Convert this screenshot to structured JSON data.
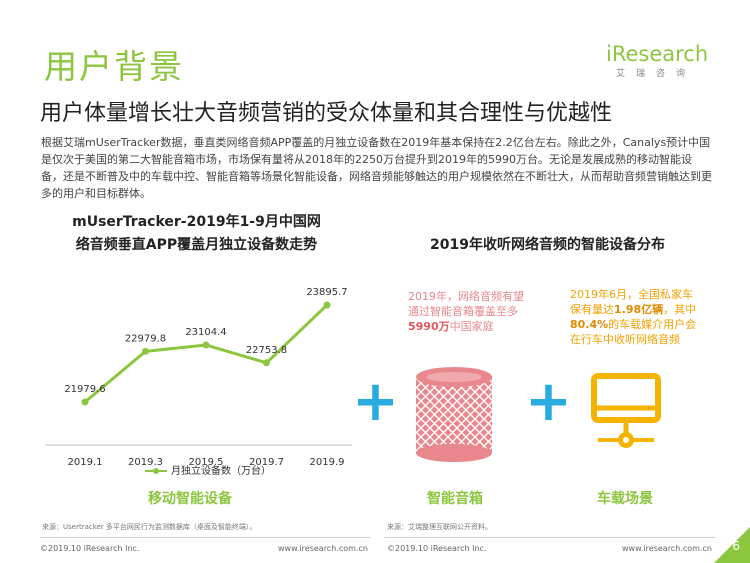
{
  "header": {
    "section_title": "用户背景",
    "logo_text": "iResearch",
    "logo_sub": "艾瑞咨询",
    "subtitle": "用户体量增长壮大音频营销的受众体量和其合理性与优越性"
  },
  "intro": {
    "paragraph": "根据艾瑞mUserTracker数据，垂直类网络音频APP覆盖的月独立设备数在2019年基本保持在2.2亿台左右。除此之外，Canalys预计中国是仅次于美国的第二大智能音箱市场，市场保有量将从2018年的2250万台提升到2019年的5990万台。无论是发展成熟的移动智能设备，还是不断普及中的车载中控、智能音箱等场景化智能设备，网络音频能够触达的用户规模依然在不断壮大，从而帮助音频营销触达到更多的用户和目标群体。"
  },
  "left": {
    "title_line1": "mUserTracker-2019年1-9月中国网",
    "title_line2": "络音频垂直APP覆盖月独立设备数走势",
    "category_label": "移动智能设备"
  },
  "chart_data": {
    "type": "line",
    "title": "mUserTracker-2019年1-9月中国网络音频垂直APP覆盖月独立设备数走势",
    "categories": [
      "2019.1",
      "2019.3",
      "2019.5",
      "2019.7",
      "2019.9"
    ],
    "series": [
      {
        "name": "月独立设备数（万台）",
        "values": [
          21979.6,
          22979.8,
          23104.4,
          22753.8,
          23895.7
        ],
        "color": "#8cc63f"
      }
    ],
    "value_labels": [
      "21979.6",
      "22979.8",
      "23104.4",
      "22753.8",
      "23895.7"
    ],
    "ylim": [
      21000,
      24500
    ],
    "grid": false,
    "legend": "bottom"
  },
  "right": {
    "title": "2019年收听网络音频的智能设备分布",
    "speaker_text_pre": "2019年，网络音频有望通过智能音箱覆盖至多",
    "speaker_text_bold": "5990万",
    "speaker_text_post": "中国家庭",
    "speaker_label": "智能音箱",
    "car_text_1": "2019年6月，全国私家车保有量达",
    "car_text_bold1": "1.98亿辆",
    "car_text_2": "，其中",
    "car_text_bold2": "80.4%",
    "car_text_3": "的车载媒介用户会在行车中收听网络音频",
    "car_label": "车载场景",
    "plus_sign": "+"
  },
  "footer": {
    "source_left": "来源：Usertracker 多平台网民行为监测数据库（桌面及智能终端）。",
    "source_right": "来源：艾瑞整理互联网公开资料。",
    "copyright_left": "©2019.10 iResearch Inc.",
    "site_left": "www.iresearch.com.cn",
    "copyright_right": "©2019.10 iResearch Inc.",
    "site_right": "www.iresearch.com.cn",
    "page_number": "6"
  },
  "colors": {
    "accent_green": "#8cc63f",
    "plus_blue": "#29abe2",
    "speaker_pink": "#e8888c",
    "car_orange": "#f4a100"
  }
}
